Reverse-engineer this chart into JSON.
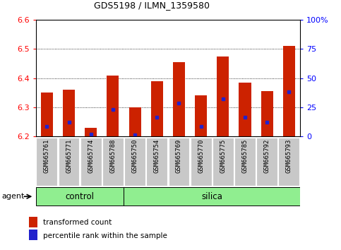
{
  "title": "GDS5198 / ILMN_1359580",
  "samples": [
    "GSM665761",
    "GSM665771",
    "GSM665774",
    "GSM665788",
    "GSM665750",
    "GSM665754",
    "GSM665769",
    "GSM665770",
    "GSM665775",
    "GSM665785",
    "GSM665792",
    "GSM665793"
  ],
  "groups": [
    "control",
    "control",
    "control",
    "control",
    "silica",
    "silica",
    "silica",
    "silica",
    "silica",
    "silica",
    "silica",
    "silica"
  ],
  "bar_bottom": 6.2,
  "bar_tops": [
    6.35,
    6.36,
    6.23,
    6.41,
    6.3,
    6.39,
    6.455,
    6.34,
    6.475,
    6.385,
    6.355,
    6.51
  ],
  "blue_values": [
    6.235,
    6.248,
    6.208,
    6.293,
    6.205,
    6.265,
    6.315,
    6.235,
    6.328,
    6.265,
    6.248,
    6.353
  ],
  "ylim_left": [
    6.2,
    6.6
  ],
  "ylim_right": [
    0,
    100
  ],
  "bar_color": "#cc2200",
  "blue_color": "#2222cc",
  "bar_width": 0.55,
  "agent_label": "agent",
  "legend_items": [
    "transformed count",
    "percentile rank within the sample"
  ],
  "n_control": 4,
  "n_silica": 8,
  "group_green": "#90ee90",
  "tick_gray": "#c8c8c8",
  "title_fontsize": 9,
  "axis_fontsize": 8,
  "sample_fontsize": 6.5
}
